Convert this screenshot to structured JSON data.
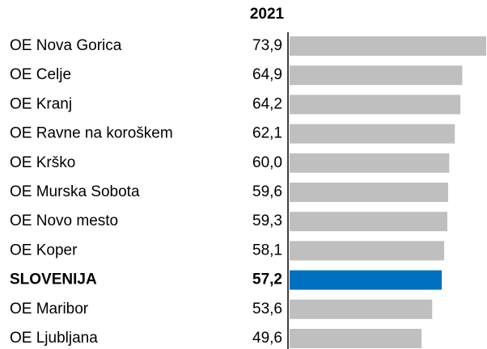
{
  "chart_data": {
    "type": "bar",
    "orientation": "horizontal",
    "title": "2021",
    "categories": [
      "OE Nova Gorica",
      "OE Celje",
      "OE Kranj",
      "OE Ravne na koroškem",
      "OE Krško",
      "OE Murska Sobota",
      "OE Novo mesto",
      "OE Koper",
      "SLOVENIJA",
      "OE Maribor",
      "OE Ljubljana"
    ],
    "values": [
      73.9,
      64.9,
      64.2,
      62.1,
      60.0,
      59.6,
      59.3,
      58.1,
      57.2,
      53.6,
      49.6
    ],
    "value_labels": [
      "73,9",
      "64,9",
      "64,2",
      "62,1",
      "60,0",
      "59,6",
      "59,3",
      "58,1",
      "57,2",
      "53,6",
      "49,6"
    ],
    "colors": [
      "#bfbfbf",
      "#bfbfbf",
      "#bfbfbf",
      "#bfbfbf",
      "#bfbfbf",
      "#bfbfbf",
      "#bfbfbf",
      "#bfbfbf",
      "#0070c0",
      "#bfbfbf",
      "#bfbfbf"
    ]
  }
}
